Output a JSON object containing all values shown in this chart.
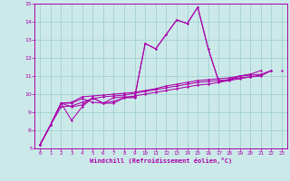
{
  "title": "",
  "xlabel": "Windchill (Refroidissement éolien,°C)",
  "ylabel": "",
  "bg_color": "#cce9e9",
  "line_color": "#aa00aa",
  "grid_color": "#99cccc",
  "xlim": [
    -0.5,
    23.5
  ],
  "ylim": [
    7,
    15
  ],
  "xticks": [
    0,
    1,
    2,
    3,
    4,
    5,
    6,
    7,
    8,
    9,
    10,
    11,
    12,
    13,
    14,
    15,
    16,
    17,
    18,
    19,
    20,
    21,
    22,
    23
  ],
  "yticks": [
    7,
    8,
    9,
    10,
    11,
    12,
    13,
    14,
    15
  ],
  "series": [
    [
      7.2,
      8.3,
      9.5,
      8.55,
      9.3,
      9.8,
      9.5,
      9.5,
      9.8,
      9.8,
      12.8,
      12.5,
      13.3,
      14.1,
      13.9,
      14.8,
      12.5,
      10.7,
      10.8,
      11.0,
      11.1,
      11.3,
      null,
      null
    ],
    [
      7.2,
      8.3,
      9.5,
      9.3,
      9.4,
      9.8,
      9.5,
      9.8,
      9.85,
      9.85,
      12.8,
      12.5,
      13.3,
      14.1,
      13.9,
      14.8,
      12.5,
      10.7,
      10.8,
      11.0,
      11.1,
      null,
      11.3,
      null
    ],
    [
      7.2,
      8.3,
      9.5,
      9.55,
      9.85,
      9.9,
      9.95,
      10.0,
      10.05,
      10.1,
      10.2,
      10.3,
      10.45,
      10.55,
      10.65,
      10.75,
      10.8,
      10.85,
      10.9,
      11.0,
      11.05,
      11.1,
      11.3,
      null
    ],
    [
      7.2,
      8.3,
      9.3,
      9.35,
      9.55,
      9.75,
      9.85,
      9.9,
      9.95,
      10.05,
      10.15,
      10.25,
      10.35,
      10.45,
      10.55,
      10.65,
      10.7,
      10.75,
      10.8,
      10.9,
      10.95,
      11.0,
      11.3,
      null
    ],
    [
      7.2,
      8.3,
      9.5,
      9.5,
      9.75,
      9.55,
      9.5,
      9.6,
      9.8,
      9.9,
      10.0,
      10.1,
      10.2,
      10.3,
      10.4,
      10.5,
      10.55,
      10.65,
      10.75,
      10.85,
      10.95,
      11.05,
      null,
      11.3
    ]
  ]
}
